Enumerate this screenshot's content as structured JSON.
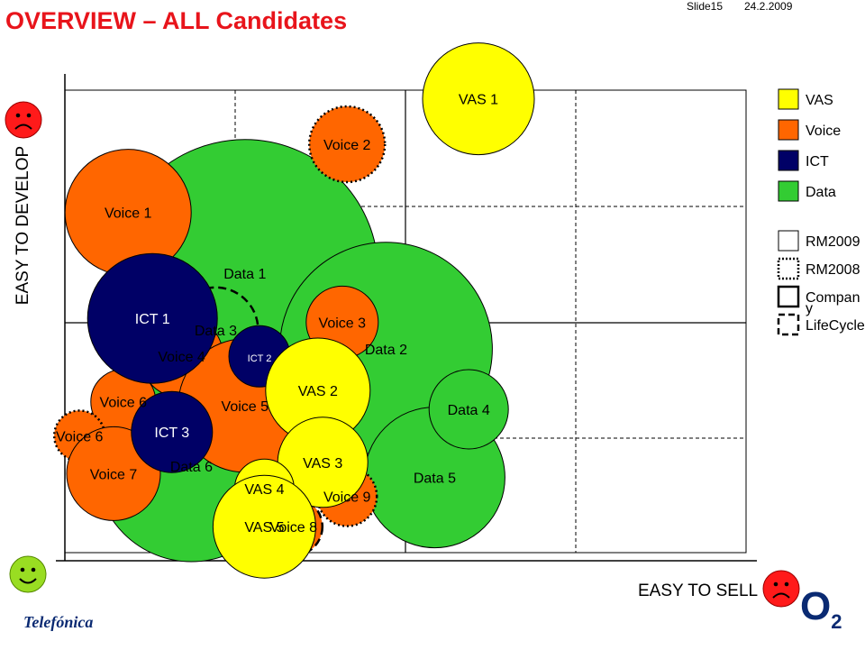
{
  "header": {
    "title": "OVERVIEW – ALL Candidates",
    "slide_number": "Slide15",
    "date": "24.2.2009"
  },
  "brand": {
    "left_logo": "Telefónica",
    "right_logo": "O2"
  },
  "colors": {
    "VAS": "#ffff00",
    "Voice": "#ff6600",
    "ICT": "#000066",
    "Data": "#33cc33",
    "title": "#e8141b"
  },
  "icons": {
    "sad_face_top": "sad-face-icon",
    "happy_face_bottom": "happy-face-icon",
    "sad_face_right": "sad-face-icon"
  },
  "chart_data": {
    "type": "bubble",
    "xlabel": "EASY TO SELL",
    "ylabel": "EASY TO DEVELOP",
    "grid": true,
    "legend_position": "right",
    "legend": {
      "categories": [
        {
          "name": "VAS",
          "color": "#ffff00"
        },
        {
          "name": "Voice",
          "color": "#ff6600"
        },
        {
          "name": "ICT",
          "color": "#000066"
        },
        {
          "name": "Data",
          "color": "#33cc33"
        }
      ],
      "border_styles": [
        {
          "name": "RM2009",
          "style": "solid"
        },
        {
          "name": "RM2008",
          "style": "dotted"
        },
        {
          "name": "Company",
          "display": "Compan\ny",
          "style": "thick-solid"
        },
        {
          "name": "LifeCycle",
          "style": "dashed"
        }
      ]
    },
    "bubbles": [
      {
        "label": "Data 1",
        "category": "Data",
        "x": 3.7,
        "y": 7.6,
        "size": 148,
        "border": "solid"
      },
      {
        "label": "Data 2",
        "category": "Data",
        "x": 6.6,
        "y": 5.6,
        "size": 118,
        "border": "solid"
      },
      {
        "label": "Data 6",
        "category": "Data",
        "x": 2.6,
        "y": 2.5,
        "size": 106,
        "border": "solid"
      },
      {
        "label": "Data 5",
        "category": "Data",
        "x": 7.6,
        "y": 2.2,
        "size": 78,
        "border": "solid"
      },
      {
        "label": "Data 4",
        "category": "Data",
        "x": 8.3,
        "y": 4.0,
        "size": 44,
        "border": "solid"
      },
      {
        "label": "Data 3",
        "category": "Data",
        "x": 3.1,
        "y": 6.1,
        "size": 47,
        "border": "dashed"
      },
      {
        "label": "Voice 1",
        "category": "Voice",
        "x": 1.3,
        "y": 9.2,
        "size": 70,
        "border": "solid"
      },
      {
        "label": "Voice 2",
        "category": "Voice",
        "x": 5.8,
        "y": 11.0,
        "size": 42,
        "border": "dotted"
      },
      {
        "label": "Voice 3",
        "category": "Voice",
        "x": 5.7,
        "y": 6.3,
        "size": 40,
        "border": "solid"
      },
      {
        "label": "Voice 4",
        "category": "Voice",
        "x": 2.4,
        "y": 5.4,
        "size": 46,
        "border": "solid"
      },
      {
        "label": "Voice 5",
        "category": "Voice",
        "x": 3.7,
        "y": 4.1,
        "size": 74,
        "border": "solid"
      },
      {
        "label": "Voice 6",
        "category": "Voice",
        "x": 1.2,
        "y": 4.2,
        "size": 36,
        "border": "solid"
      },
      {
        "label": "Voice 6",
        "category": "Voice",
        "x": 0.3,
        "y": 3.3,
        "size": 28,
        "border": "dotted"
      },
      {
        "label": "Voice 7",
        "category": "Voice",
        "x": 1.0,
        "y": 2.3,
        "size": 52,
        "border": "solid"
      },
      {
        "label": "Voice 8",
        "category": "Voice",
        "x": 4.7,
        "y": 0.9,
        "size": 32,
        "border": "dashed"
      },
      {
        "label": "Voice 9",
        "category": "Voice",
        "x": 5.8,
        "y": 1.7,
        "size": 33,
        "border": "dotted"
      },
      {
        "label": "ICT 1",
        "category": "ICT",
        "x": 1.8,
        "y": 6.4,
        "size": 72,
        "border": "solid"
      },
      {
        "label": "ICT 2",
        "category": "ICT",
        "x": 4.0,
        "y": 5.4,
        "size": 34,
        "border": "solid"
      },
      {
        "label": "ICT 3",
        "category": "ICT",
        "x": 2.2,
        "y": 3.4,
        "size": 45,
        "border": "solid"
      },
      {
        "label": "VAS 1",
        "category": "VAS",
        "x": 8.5,
        "y": 12.2,
        "size": 62,
        "border": "solid"
      },
      {
        "label": "VAS 2",
        "category": "VAS",
        "x": 5.2,
        "y": 4.5,
        "size": 58,
        "border": "solid"
      },
      {
        "label": "VAS 3",
        "category": "VAS",
        "x": 5.3,
        "y": 2.6,
        "size": 50,
        "border": "solid"
      },
      {
        "label": "VAS 4",
        "category": "VAS",
        "x": 4.1,
        "y": 1.9,
        "size": 33,
        "border": "solid"
      },
      {
        "label": "VAS 5",
        "display": "VAS 5",
        "category": "VAS",
        "x": 4.1,
        "y": 0.9,
        "size": 57,
        "border": "solid"
      }
    ]
  }
}
